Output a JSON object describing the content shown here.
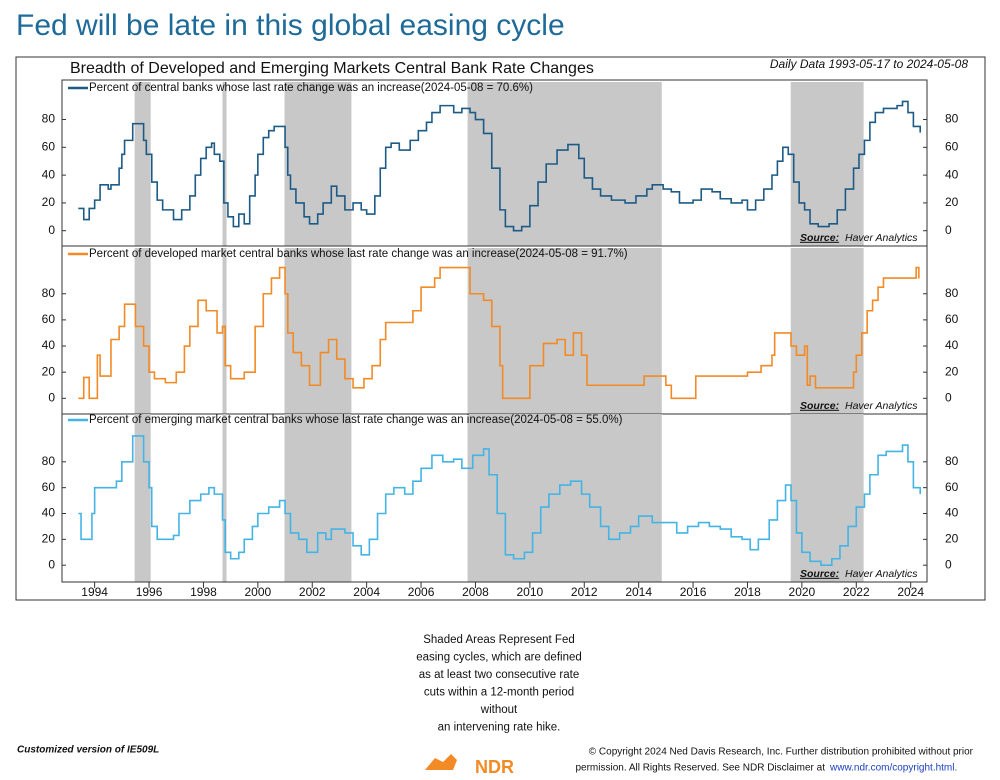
{
  "header": {
    "title": "Fed will be late in this global easing cycle"
  },
  "chart_title": "Breadth of Developed and Emerging Markets Central Bank Rate Changes",
  "date_range": "Daily Data 1993-05-17 to 2024-05-08",
  "xlim": [
    1992.8,
    2024.6
  ],
  "xticks": [
    1994,
    1996,
    1998,
    2000,
    2002,
    2004,
    2006,
    2008,
    2010,
    2012,
    2014,
    2016,
    2018,
    2020,
    2022,
    2024
  ],
  "shaded_periods": [
    [
      1995.47,
      1996.06
    ],
    [
      1998.7,
      1998.85
    ],
    [
      2000.98,
      2003.44
    ],
    [
      2007.71,
      2014.85
    ],
    [
      2019.59,
      2022.27
    ]
  ],
  "chart_data": [
    {
      "type": "line",
      "ylim": [
        -11,
        107
      ],
      "yticks": [
        0,
        20,
        40,
        60,
        80
      ],
      "source_label": "Source:",
      "source": "Haver Analytics",
      "series": [
        {
          "name": "Percent of central banks whose last rate change was an increase(2024-05-08 = 70.6%)",
          "color": "#1d5b86",
          "x": [
            1993.4,
            1993.6,
            1993.8,
            1994.0,
            1994.2,
            1994.5,
            1994.6,
            1994.9,
            1995.0,
            1995.1,
            1995.4,
            1995.8,
            1995.9,
            1996.1,
            1996.3,
            1996.5,
            1996.9,
            1997.2,
            1997.5,
            1997.7,
            1997.9,
            1998.1,
            1998.3,
            1998.4,
            1998.6,
            1998.75,
            1998.9,
            1999.1,
            1999.3,
            1999.5,
            1999.7,
            1999.9,
            2000.0,
            2000.2,
            2000.4,
            2000.6,
            2001.0,
            2001.1,
            2001.2,
            2001.4,
            2001.7,
            2001.9,
            2002.2,
            2002.4,
            2002.7,
            2002.9,
            2003.2,
            2003.5,
            2003.8,
            2004.0,
            2004.3,
            2004.5,
            2004.7,
            2004.9,
            2005.2,
            2005.6,
            2005.9,
            2006.2,
            2006.4,
            2006.7,
            2007.2,
            2007.5,
            2007.8,
            2008.0,
            2008.3,
            2008.6,
            2008.9,
            2009.1,
            2009.4,
            2009.7,
            2010.0,
            2010.3,
            2010.6,
            2011.0,
            2011.4,
            2011.8,
            2012.0,
            2012.3,
            2012.6,
            2013.0,
            2013.5,
            2013.9,
            2014.3,
            2014.5,
            2014.9,
            2015.2,
            2015.5,
            2016.0,
            2016.3,
            2016.7,
            2017.0,
            2017.4,
            2017.8,
            2018.0,
            2018.3,
            2018.6,
            2018.9,
            2019.1,
            2019.3,
            2019.5,
            2019.7,
            2019.9,
            2020.1,
            2020.3,
            2020.6,
            2021.0,
            2021.3,
            2021.6,
            2021.9,
            2022.1,
            2022.3,
            2022.5,
            2022.7,
            2023.0,
            2023.5,
            2023.7,
            2023.9,
            2024.1,
            2024.35
          ],
          "values": [
            16,
            8,
            16,
            22,
            33,
            30,
            33,
            45,
            55,
            65,
            77,
            65,
            55,
            35,
            22,
            15,
            8,
            15,
            25,
            40,
            52,
            60,
            63,
            55,
            50,
            20,
            10,
            3,
            12,
            5,
            25,
            40,
            55,
            67,
            72,
            75,
            60,
            40,
            30,
            20,
            10,
            5,
            12,
            20,
            32,
            25,
            15,
            20,
            15,
            12,
            25,
            45,
            60,
            63,
            58,
            65,
            72,
            78,
            85,
            90,
            85,
            88,
            85,
            80,
            70,
            45,
            15,
            3,
            0,
            3,
            18,
            35,
            48,
            58,
            62,
            52,
            38,
            30,
            25,
            22,
            20,
            25,
            30,
            33,
            30,
            28,
            20,
            22,
            30,
            28,
            23,
            20,
            22,
            15,
            22,
            30,
            40,
            50,
            60,
            55,
            35,
            20,
            15,
            5,
            3,
            5,
            15,
            30,
            45,
            55,
            65,
            78,
            85,
            88,
            90,
            93,
            85,
            75,
            70.6
          ]
        }
      ]
    },
    {
      "type": "line",
      "ylim": [
        -12,
        115
      ],
      "yticks": [
        0,
        20,
        40,
        60,
        80
      ],
      "source_label": "Source:",
      "source": "Haver Analytics",
      "series": [
        {
          "name": "Percent of developed market central banks whose last rate change was an increase(2024-05-08 = 91.7%)",
          "color": "#f28a25",
          "x": [
            1993.4,
            1993.6,
            1993.8,
            1994.1,
            1994.2,
            1994.6,
            1994.9,
            1995.1,
            1995.5,
            1995.8,
            1996.0,
            1996.2,
            1996.6,
            1997.0,
            1997.3,
            1997.5,
            1997.8,
            1998.1,
            1998.5,
            1998.7,
            1998.8,
            1999.0,
            1999.5,
            1999.9,
            2000.2,
            2000.5,
            2000.8,
            2001.0,
            2001.1,
            2001.3,
            2001.6,
            2001.9,
            2002.3,
            2002.6,
            2002.9,
            2003.2,
            2003.5,
            2003.9,
            2004.2,
            2004.5,
            2004.7,
            2005.7,
            2006.0,
            2006.5,
            2006.7,
            2007.8,
            2008.3,
            2008.6,
            2008.9,
            2009.0,
            2010.0,
            2010.5,
            2011.0,
            2011.3,
            2011.6,
            2011.9,
            2012.1,
            2014.2,
            2015.0,
            2015.2,
            2016.1,
            2018.0,
            2018.5,
            2018.9,
            2019.0,
            2019.6,
            2019.8,
            2020.1,
            2020.2,
            2020.3,
            2020.5,
            2021.9,
            2022.0,
            2022.2,
            2022.4,
            2022.6,
            2022.8,
            2023.0,
            2024.2,
            2024.3
          ],
          "values": [
            0,
            16,
            0,
            33,
            17,
            45,
            55,
            72,
            55,
            40,
            20,
            15,
            12,
            20,
            40,
            55,
            75,
            67,
            50,
            55,
            25,
            15,
            20,
            55,
            80,
            92,
            100,
            80,
            50,
            35,
            25,
            10,
            35,
            45,
            30,
            15,
            8,
            15,
            25,
            45,
            58,
            67,
            85,
            92,
            100,
            80,
            75,
            55,
            25,
            0,
            25,
            42,
            45,
            33,
            50,
            33,
            10,
            17,
            10,
            0,
            17,
            20,
            25,
            33,
            50,
            40,
            33,
            40,
            10,
            17,
            8,
            20,
            33,
            50,
            67,
            75,
            85,
            92,
            100,
            91.7
          ]
        }
      ]
    },
    {
      "type": "line",
      "ylim": [
        -13,
        117
      ],
      "yticks": [
        0,
        20,
        40,
        60,
        80
      ],
      "source_label": "Source:",
      "source": "Haver Analytics",
      "series": [
        {
          "name": "Percent of emerging market central banks whose last rate change was an increase(2024-05-08 = 55.0%)",
          "color": "#43b4e4",
          "x": [
            1993.4,
            1993.5,
            1993.9,
            1994.0,
            1994.8,
            1995.0,
            1995.4,
            1995.8,
            1996.0,
            1996.1,
            1996.3,
            1996.9,
            1997.1,
            1997.5,
            1997.9,
            1998.2,
            1998.4,
            1998.7,
            1998.8,
            1999.0,
            1999.3,
            1999.5,
            1999.8,
            2000.0,
            2000.4,
            2000.8,
            2001.0,
            2001.2,
            2001.5,
            2001.8,
            2002.2,
            2002.5,
            2002.7,
            2003.2,
            2003.5,
            2003.8,
            2004.1,
            2004.4,
            2004.7,
            2005.0,
            2005.4,
            2005.7,
            2006.0,
            2006.4,
            2006.8,
            2007.2,
            2007.5,
            2007.9,
            2008.3,
            2008.5,
            2008.8,
            2009.1,
            2009.4,
            2009.8,
            2010.1,
            2010.4,
            2010.7,
            2011.1,
            2011.5,
            2011.9,
            2012.2,
            2012.6,
            2012.9,
            2013.3,
            2013.7,
            2014.0,
            2014.5,
            2015.4,
            2015.8,
            2016.2,
            2016.6,
            2017.0,
            2017.4,
            2017.8,
            2018.1,
            2018.4,
            2018.8,
            2019.1,
            2019.4,
            2019.6,
            2019.8,
            2020.0,
            2020.3,
            2020.7,
            2021.1,
            2021.4,
            2021.7,
            2022.0,
            2022.3,
            2022.5,
            2022.8,
            2023.1,
            2023.7,
            2023.9,
            2024.1,
            2024.35
          ],
          "values": [
            40,
            20,
            40,
            60,
            65,
            80,
            100,
            80,
            60,
            30,
            20,
            23,
            40,
            50,
            55,
            60,
            55,
            35,
            10,
            5,
            10,
            20,
            30,
            40,
            45,
            50,
            40,
            25,
            20,
            10,
            25,
            20,
            28,
            25,
            15,
            8,
            20,
            40,
            55,
            60,
            55,
            65,
            75,
            85,
            80,
            82,
            75,
            85,
            90,
            70,
            40,
            8,
            5,
            10,
            25,
            45,
            55,
            62,
            65,
            55,
            45,
            30,
            20,
            25,
            30,
            38,
            33,
            25,
            30,
            33,
            30,
            28,
            22,
            20,
            12,
            20,
            35,
            50,
            62,
            50,
            25,
            10,
            3,
            0,
            5,
            15,
            30,
            45,
            55,
            70,
            85,
            88,
            93,
            80,
            60,
            55
          ]
        }
      ]
    }
  ],
  "note": [
    "Shaded Areas Represent Fed",
    "easing cycles, which are defined",
    "as at least two consecutive rate",
    "cuts within a 12-month period",
    "without",
    "an intervening rate hike."
  ],
  "footer": {
    "version": "Customized version of IE509L",
    "logo": "NDR",
    "copyright_1": "© Copyright 2024 Ned Davis Research, Inc. Further distribution prohibited without prior",
    "copyright_2": "permission. All Rights Reserved. See NDR Disclaimer at",
    "link": "www.ndr.com/copyright.html."
  }
}
